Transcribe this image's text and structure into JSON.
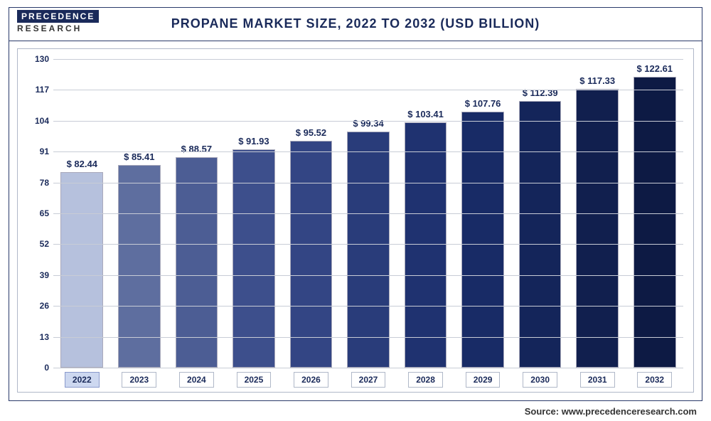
{
  "logo": {
    "top": "PRECEDENCE",
    "bottom": "RESEARCH"
  },
  "title": "PROPANE MARKET SIZE, 2022 TO 2032 (USD BILLION)",
  "source": "Source: www.precedenceresearch.com",
  "chart": {
    "type": "bar",
    "ylim": [
      0,
      130
    ],
    "ytick_step": 13,
    "yticks": [
      0,
      13,
      26,
      39,
      52,
      65,
      78,
      91,
      104,
      117,
      130
    ],
    "currency_prefix": "$ ",
    "background_color": "#ffffff",
    "border_color": "#2a3a6a",
    "grid_color": "#c8ccd6",
    "title_fontsize": 18,
    "label_fontsize": 12,
    "value_label_fontsize": 13,
    "tick_fontsize": 12,
    "text_color": "#1a2a5a",
    "bar_width": 0.74,
    "highlight_first": true,
    "highlight_bg": "#cdd8f0",
    "categories": [
      "2022",
      "2023",
      "2024",
      "2025",
      "2026",
      "2027",
      "2028",
      "2029",
      "2030",
      "2031",
      "2032"
    ],
    "values": [
      82.44,
      85.41,
      88.57,
      91.93,
      95.52,
      99.34,
      103.41,
      107.76,
      112.39,
      117.33,
      122.61
    ],
    "bar_colors": [
      "#b6c1dd",
      "#5e6e9f",
      "#4c5d94",
      "#3d4f8c",
      "#334584",
      "#293c7a",
      "#1f3270",
      "#182b66",
      "#14255a",
      "#111f4e",
      "#0d1a44"
    ]
  }
}
